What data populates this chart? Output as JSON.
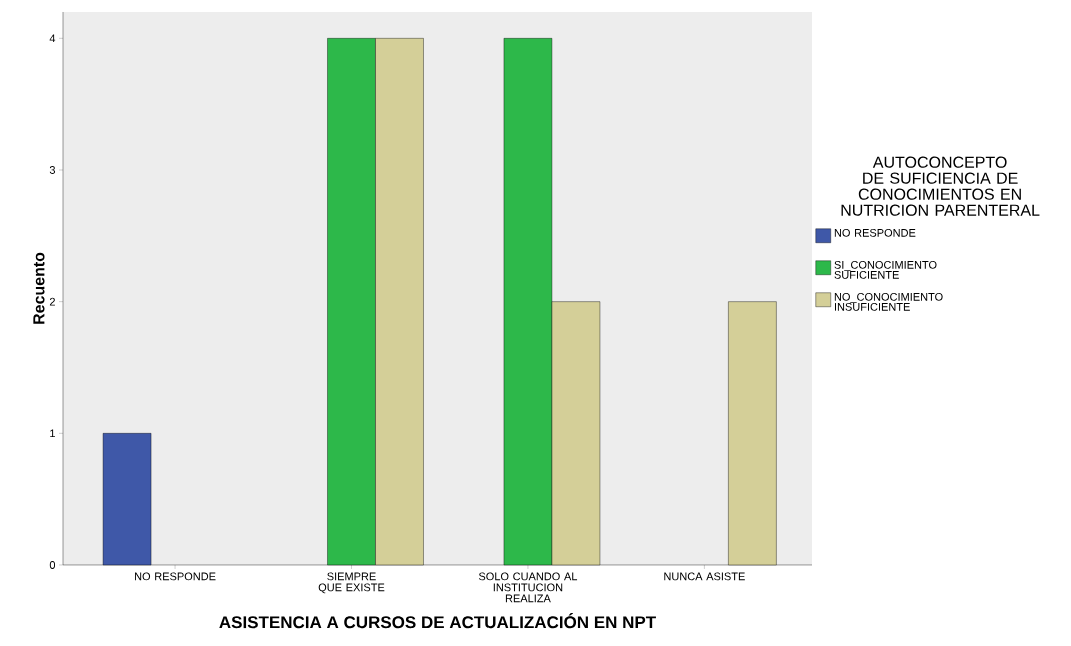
{
  "chart_data": {
    "type": "bar",
    "xlabel": "ASISTENCIA A CURSOS DE ACTUALIZACIÓN EN NPT",
    "ylabel": "Recuento",
    "legend_title": "AUTOCONCEPTO DE SUFICIENCIA DE CONOCIMIENTOS EN NUTRICION PARENTERAL",
    "categories": [
      "NO RESPONDE",
      "SIEMPRE QUE EXISTE",
      "SOLO CUANDO AL INSTITUCION REALIZA",
      "NUNCA ASISTE"
    ],
    "series": [
      {
        "name": "NO RESPONDE",
        "color": "#3f58a8",
        "values": [
          1,
          null,
          null,
          null
        ]
      },
      {
        "name": "SI_CONOCIMIENTO SUFICIENTE",
        "color": "#2db84a",
        "values": [
          null,
          4,
          4,
          null
        ]
      },
      {
        "name": "NO_CONOCIMIENTO INSUFICIENTE",
        "color": "#d4cf98",
        "values": [
          null,
          4,
          2,
          2
        ]
      }
    ],
    "ylim": [
      0,
      4.2
    ],
    "yticks": [
      0,
      1,
      2,
      3,
      4
    ],
    "grid": false,
    "legend": "right"
  }
}
